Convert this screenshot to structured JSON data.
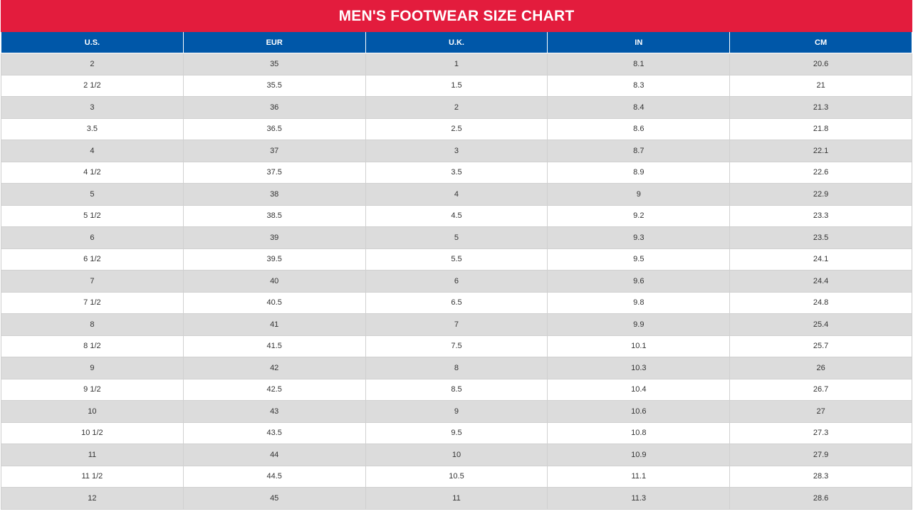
{
  "title": "MEN'S FOOTWEAR SIZE CHART",
  "table": {
    "header": [
      "U.S.",
      "EUR",
      "U.K.",
      "IN",
      "CM"
    ],
    "rows": [
      [
        "2",
        "35",
        "1",
        "8.1",
        "20.6"
      ],
      [
        "2 1/2",
        "35.5",
        "1.5",
        "8.3",
        "21"
      ],
      [
        "3",
        "36",
        "2",
        "8.4",
        "21.3"
      ],
      [
        "3.5",
        "36.5",
        "2.5",
        "8.6",
        "21.8"
      ],
      [
        "4",
        "37",
        "3",
        "8.7",
        "22.1"
      ],
      [
        "4 1/2",
        "37.5",
        "3.5",
        "8.9",
        "22.6"
      ],
      [
        "5",
        "38",
        "4",
        "9",
        "22.9"
      ],
      [
        "5 1/2",
        "38.5",
        "4.5",
        "9.2",
        "23.3"
      ],
      [
        "6",
        "39",
        "5",
        "9.3",
        "23.5"
      ],
      [
        "6 1/2",
        "39.5",
        "5.5",
        "9.5",
        "24.1"
      ],
      [
        "7",
        "40",
        "6",
        "9.6",
        "24.4"
      ],
      [
        "7 1/2",
        "40.5",
        "6.5",
        "9.8",
        "24.8"
      ],
      [
        "8",
        "41",
        "7",
        "9.9",
        "25.4"
      ],
      [
        "8 1/2",
        "41.5",
        "7.5",
        "10.1",
        "25.7"
      ],
      [
        "9",
        "42",
        "8",
        "10.3",
        "26"
      ],
      [
        "9 1/2",
        "42.5",
        "8.5",
        "10.4",
        "26.7"
      ],
      [
        "10",
        "43",
        "9",
        "10.6",
        "27"
      ],
      [
        "10 1/2",
        "43.5",
        "9.5",
        "10.8",
        "27.3"
      ],
      [
        "11",
        "44",
        "10",
        "10.9",
        "27.9"
      ],
      [
        "11 1/2",
        "44.5",
        "10.5",
        "11.1",
        "28.3"
      ],
      [
        "12",
        "45",
        "11",
        "11.3",
        "28.6"
      ]
    ]
  }
}
